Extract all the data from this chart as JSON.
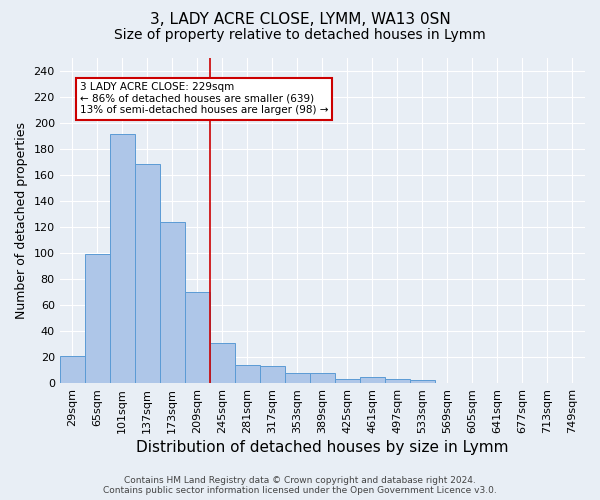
{
  "title": "3, LADY ACRE CLOSE, LYMM, WA13 0SN",
  "subtitle": "Size of property relative to detached houses in Lymm",
  "xlabel": "Distribution of detached houses by size in Lymm",
  "ylabel": "Number of detached properties",
  "footer_line1": "Contains HM Land Registry data © Crown copyright and database right 2024.",
  "footer_line2": "Contains public sector information licensed under the Open Government Licence v3.0.",
  "bar_labels": [
    "29sqm",
    "65sqm",
    "101sqm",
    "137sqm",
    "173sqm",
    "209sqm",
    "245sqm",
    "281sqm",
    "317sqm",
    "353sqm",
    "389sqm",
    "425sqm",
    "461sqm",
    "497sqm",
    "533sqm",
    "569sqm",
    "605sqm",
    "641sqm",
    "677sqm",
    "713sqm",
    "749sqm"
  ],
  "bar_values": [
    21,
    99,
    191,
    168,
    124,
    70,
    31,
    14,
    13,
    8,
    8,
    3,
    5,
    3,
    2,
    0,
    0,
    0,
    0,
    0,
    0
  ],
  "bar_color": "#aec6e8",
  "bar_edge_color": "#5b9bd5",
  "vline_color": "#cc0000",
  "vline_x_index": 5.5,
  "annotation_text": "3 LADY ACRE CLOSE: 229sqm\n← 86% of detached houses are smaller (639)\n13% of semi-detached houses are larger (98) →",
  "annotation_box_facecolor": "#ffffff",
  "annotation_box_edgecolor": "#cc0000",
  "ylim": [
    0,
    250
  ],
  "yticks": [
    0,
    20,
    40,
    60,
    80,
    100,
    120,
    140,
    160,
    180,
    200,
    220,
    240
  ],
  "background_color": "#e8eef5",
  "plot_bg_color": "#e8eef5",
  "grid_color": "#ffffff",
  "title_fontsize": 11,
  "subtitle_fontsize": 10,
  "xlabel_fontsize": 11,
  "ylabel_fontsize": 9,
  "tick_fontsize": 8,
  "footer_fontsize": 6.5
}
